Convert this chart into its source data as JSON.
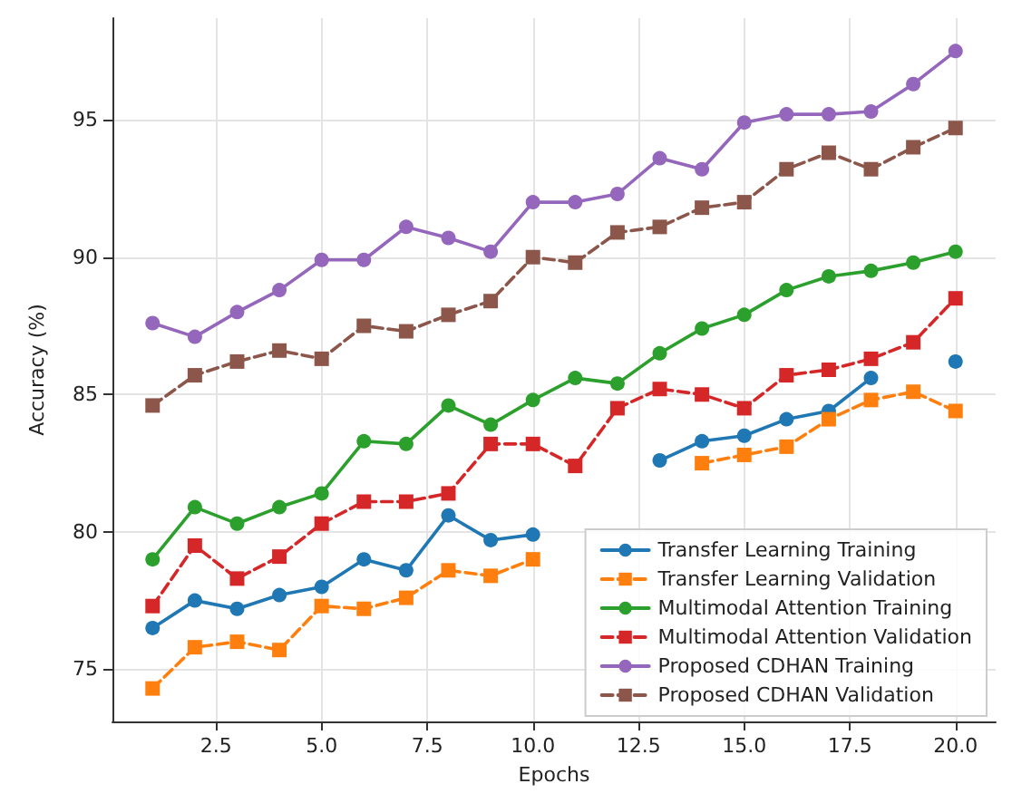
{
  "chart_data": {
    "type": "line",
    "xlabel": "Epochs",
    "ylabel": "Accuracy (%)",
    "x": [
      1,
      2,
      3,
      4,
      5,
      6,
      7,
      8,
      9,
      10,
      11,
      12,
      13,
      14,
      15,
      16,
      17,
      18,
      19,
      20
    ],
    "xlim": [
      0.05,
      20.95
    ],
    "xticks": [
      {
        "value": 2.5,
        "label": "2.5"
      },
      {
        "value": 5,
        "label": "5.0"
      },
      {
        "value": 7.5,
        "label": "7.5"
      },
      {
        "value": 10,
        "label": "10.0"
      },
      {
        "value": 12.5,
        "label": "12.5"
      },
      {
        "value": 15,
        "label": "15.0"
      },
      {
        "value": 17.5,
        "label": "17.5"
      },
      {
        "value": 20,
        "label": "20.0"
      }
    ],
    "ylim": [
      73.1,
      98.7
    ],
    "yticks": [
      75,
      80,
      85,
      90,
      95
    ],
    "grid": true,
    "legend": "bottom right",
    "series": [
      {
        "name": "Transfer Learning Training",
        "color": "#1f77b4",
        "marker": "circle",
        "line_style": "solid",
        "values": [
          76.5,
          77.5,
          77.2,
          77.7,
          78.0,
          79.0,
          78.6,
          80.6,
          79.7,
          79.9,
          null,
          null,
          82.6,
          83.3,
          83.5,
          84.1,
          84.4,
          85.6,
          null,
          86.2
        ]
      },
      {
        "name": "Transfer Learning Validation",
        "color": "#ff7f0e",
        "marker": "square",
        "line_style": "dashed",
        "values": [
          74.3,
          75.8,
          76.0,
          75.7,
          77.3,
          77.2,
          77.6,
          78.6,
          78.4,
          79.0,
          null,
          null,
          null,
          82.5,
          82.8,
          83.1,
          84.1,
          84.8,
          85.1,
          84.4
        ]
      },
      {
        "name": "Multimodal Attention Training",
        "color": "#2ca02c",
        "marker": "circle",
        "line_style": "solid",
        "values": [
          79.0,
          80.9,
          80.3,
          80.9,
          81.4,
          83.3,
          83.2,
          84.6,
          83.9,
          84.8,
          85.6,
          85.4,
          86.5,
          87.4,
          87.9,
          88.8,
          89.3,
          89.5,
          89.8,
          90.2
        ]
      },
      {
        "name": "Multimodal Attention Validation",
        "color": "#d62728",
        "marker": "square",
        "line_style": "dashed",
        "values": [
          77.3,
          79.5,
          78.3,
          79.1,
          80.3,
          81.1,
          81.1,
          81.4,
          83.2,
          83.2,
          82.4,
          84.5,
          85.2,
          85.0,
          84.5,
          85.7,
          85.9,
          86.3,
          86.9,
          88.5
        ]
      },
      {
        "name": "Proposed CDHAN Training",
        "color": "#9467bd",
        "marker": "circle",
        "line_style": "solid",
        "values": [
          87.6,
          87.1,
          88.0,
          88.8,
          89.9,
          89.9,
          91.1,
          90.7,
          90.2,
          92.0,
          92.0,
          92.3,
          93.6,
          93.2,
          94.9,
          95.2,
          95.2,
          95.3,
          96.3,
          97.5
        ]
      },
      {
        "name": "Proposed CDHAN Validation",
        "color": "#8c564b",
        "marker": "square",
        "line_style": "dashed",
        "values": [
          84.6,
          85.7,
          86.2,
          86.6,
          86.3,
          87.5,
          87.3,
          87.9,
          88.4,
          90.0,
          89.8,
          90.9,
          91.1,
          91.8,
          92.0,
          93.2,
          93.8,
          93.2,
          94.0,
          94.7
        ]
      }
    ]
  }
}
